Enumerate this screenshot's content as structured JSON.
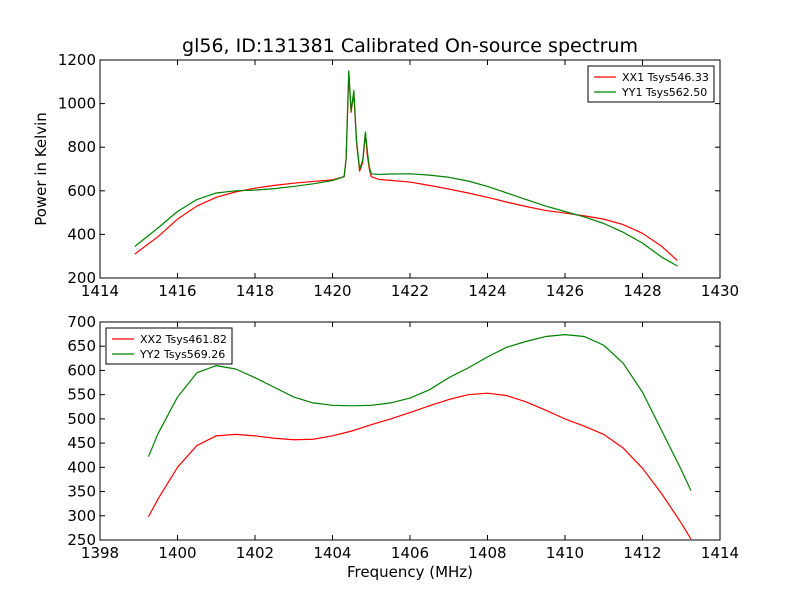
{
  "chart_data": [
    {
      "type": "line",
      "title": "gl56, ID:131381 Calibrated On-source spectrum",
      "xlabel": "",
      "ylabel": "Power in Kelvin",
      "xlim": [
        1414,
        1430
      ],
      "ylim": [
        200,
        1200
      ],
      "xticks": [
        "1414",
        "1416",
        "1418",
        "1420",
        "1422",
        "1424",
        "1426",
        "1428",
        "1430"
      ],
      "yticks": [
        "200",
        "400",
        "600",
        "800",
        "1000",
        "1200"
      ],
      "grid": false,
      "legend_position": "top-right",
      "series": [
        {
          "name": "XX1 Tsys546.33",
          "color": "#ff0000",
          "x": [
            1414.9,
            1415.5,
            1416.0,
            1416.5,
            1417.0,
            1417.5,
            1418.0,
            1418.5,
            1419.0,
            1419.5,
            1420.0,
            1420.3,
            1420.35,
            1420.42,
            1420.48,
            1420.55,
            1420.62,
            1420.7,
            1420.78,
            1420.85,
            1420.9,
            1420.95,
            1421.0,
            1421.2,
            1421.5,
            1422.0,
            1422.5,
            1423.0,
            1423.5,
            1424.0,
            1424.5,
            1425.0,
            1425.5,
            1426.0,
            1426.5,
            1427.0,
            1427.5,
            1428.0,
            1428.5,
            1428.9
          ],
          "y": [
            310,
            390,
            470,
            530,
            570,
            595,
            612,
            625,
            635,
            643,
            650,
            665,
            740,
            1140,
            960,
            1050,
            820,
            690,
            730,
            860,
            760,
            700,
            665,
            652,
            648,
            640,
            625,
            608,
            590,
            570,
            548,
            528,
            510,
            498,
            485,
            470,
            445,
            405,
            345,
            280
          ]
        },
        {
          "name": "YY1 Tsys562.50",
          "color": "#008000",
          "x": [
            1414.9,
            1415.5,
            1416.0,
            1416.5,
            1417.0,
            1417.5,
            1418.0,
            1418.5,
            1419.0,
            1419.5,
            1420.0,
            1420.3,
            1420.35,
            1420.42,
            1420.48,
            1420.55,
            1420.62,
            1420.7,
            1420.78,
            1420.85,
            1420.9,
            1420.95,
            1421.0,
            1421.2,
            1421.5,
            1422.0,
            1422.5,
            1423.0,
            1423.5,
            1424.0,
            1424.5,
            1425.0,
            1425.5,
            1426.0,
            1426.5,
            1427.0,
            1427.5,
            1428.0,
            1428.5,
            1428.9
          ],
          "y": [
            345,
            430,
            505,
            560,
            590,
            600,
            603,
            610,
            620,
            632,
            647,
            665,
            745,
            1150,
            965,
            1060,
            830,
            700,
            740,
            870,
            780,
            710,
            678,
            675,
            677,
            678,
            672,
            662,
            645,
            620,
            590,
            560,
            530,
            505,
            480,
            450,
            410,
            360,
            295,
            255
          ]
        }
      ]
    },
    {
      "type": "line",
      "title": "",
      "xlabel": "Frequency (MHz)",
      "ylabel": "",
      "xlim": [
        1398,
        1414
      ],
      "ylim": [
        250,
        700
      ],
      "xticks": [
        "1398",
        "1400",
        "1402",
        "1404",
        "1406",
        "1408",
        "1410",
        "1412",
        "1414"
      ],
      "yticks": [
        "250",
        "300",
        "350",
        "400",
        "450",
        "500",
        "550",
        "600",
        "650",
        "700"
      ],
      "grid": false,
      "legend_position": "top-left",
      "series": [
        {
          "name": "XX2 Tsys461.82",
          "color": "#ff0000",
          "x": [
            1399.25,
            1399.5,
            1400.0,
            1400.5,
            1401.0,
            1401.5,
            1402.0,
            1402.5,
            1403.0,
            1403.5,
            1404.0,
            1404.5,
            1405.0,
            1405.5,
            1406.0,
            1406.5,
            1407.0,
            1407.5,
            1408.0,
            1408.5,
            1409.0,
            1409.5,
            1410.0,
            1410.5,
            1411.0,
            1411.5,
            1412.0,
            1412.5,
            1413.0,
            1413.25
          ],
          "y": [
            298,
            335,
            400,
            445,
            465,
            468,
            465,
            460,
            457,
            458,
            465,
            475,
            488,
            500,
            513,
            527,
            540,
            550,
            553,
            548,
            535,
            518,
            500,
            485,
            468,
            440,
            398,
            345,
            285,
            252
          ]
        },
        {
          "name": "YY2 Tsys569.26",
          "color": "#008000",
          "x": [
            1399.25,
            1399.5,
            1400.0,
            1400.5,
            1401.0,
            1401.5,
            1402.0,
            1402.5,
            1403.0,
            1403.5,
            1404.0,
            1404.5,
            1405.0,
            1405.5,
            1406.0,
            1406.5,
            1407.0,
            1407.5,
            1408.0,
            1408.5,
            1409.0,
            1409.5,
            1410.0,
            1410.5,
            1411.0,
            1411.5,
            1412.0,
            1412.5,
            1413.0,
            1413.25
          ],
          "y": [
            422,
            470,
            545,
            595,
            610,
            603,
            585,
            565,
            545,
            533,
            528,
            527,
            528,
            533,
            543,
            560,
            585,
            605,
            628,
            648,
            660,
            670,
            674,
            670,
            652,
            615,
            555,
            475,
            395,
            352
          ]
        }
      ]
    }
  ]
}
